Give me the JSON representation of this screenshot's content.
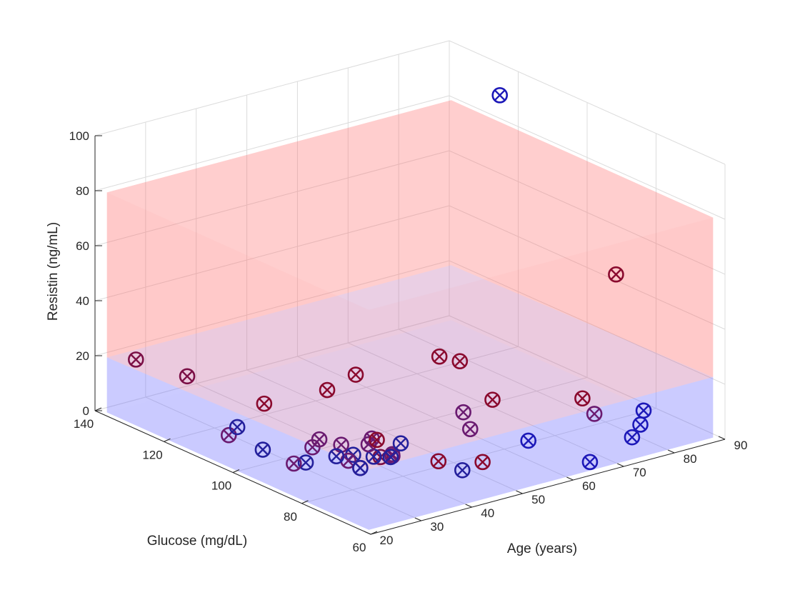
{
  "chart_data": {
    "type": "scatter",
    "title": "",
    "xlabel": "Age (years)",
    "ylabel": "Glucose (mg/dL)",
    "zlabel": "Resistin (ng/mL)",
    "xlim": [
      20,
      90
    ],
    "ylim": [
      60,
      140
    ],
    "zlim": [
      0,
      100
    ],
    "xticks": [
      "20",
      "30",
      "40",
      "50",
      "60",
      "70",
      "80",
      "90"
    ],
    "yticks": [
      "60",
      "80",
      "100",
      "120",
      "140"
    ],
    "zticks": [
      "0",
      "20",
      "40",
      "60",
      "80",
      "100"
    ],
    "grid": true,
    "decision_region": {
      "x_range": [
        21,
        89
      ],
      "y_range": [
        62,
        138
      ],
      "z_range": [
        0,
        80
      ],
      "colors": {
        "healthy": "#6f6fff",
        "patient": "#ff6b6b"
      },
      "boundary_z_front": 22,
      "boundary_z_back": 20
    },
    "marker": "circle-x",
    "points": [
      {
        "x": 24,
        "y": 134,
        "z": 20,
        "color": "#7b0f46"
      },
      {
        "x": 28,
        "y": 125,
        "z": 17,
        "color": "#7b0f46"
      },
      {
        "x": 33,
        "y": 110,
        "z": 13,
        "color": "#8a0a2e"
      },
      {
        "x": 40,
        "y": 102,
        "z": 19,
        "color": "#8a0a2e"
      },
      {
        "x": 47,
        "y": 104,
        "z": 20,
        "color": "#8a0a2e"
      },
      {
        "x": 54,
        "y": 90,
        "z": 31,
        "color": "#8a0a2e"
      },
      {
        "x": 56,
        "y": 87,
        "z": 30,
        "color": "#8a0a2e"
      },
      {
        "x": 85,
        "y": 118,
        "z": 95,
        "color": "#1c18b8"
      },
      {
        "x": 78,
        "y": 74,
        "z": 58,
        "color": "#8a0a2e"
      },
      {
        "x": 57,
        "y": 79,
        "z": 20,
        "color": "#8a0a2e"
      },
      {
        "x": 70,
        "y": 72,
        "z": 18,
        "color": "#8a0a2e"
      },
      {
        "x": 71,
        "y": 70,
        "z": 13,
        "color": "#6a1a70"
      },
      {
        "x": 33,
        "y": 96,
        "z": 5,
        "color": "#6a1a70"
      },
      {
        "x": 33,
        "y": 94,
        "z": 9,
        "color": "#6a1a70"
      },
      {
        "x": 31,
        "y": 95,
        "z": 1,
        "color": "#24209c"
      },
      {
        "x": 30,
        "y": 97,
        "z": 0,
        "color": "#6a1a70"
      },
      {
        "x": 41,
        "y": 88,
        "z": 2,
        "color": "#7b0f46"
      },
      {
        "x": 42,
        "y": 86,
        "z": 3,
        "color": "#6a1a70"
      },
      {
        "x": 44,
        "y": 89,
        "z": 1,
        "color": "#6a1a70"
      },
      {
        "x": 37,
        "y": 88,
        "z": 0,
        "color": "#6a1a70"
      },
      {
        "x": 47,
        "y": 80,
        "z": 2,
        "color": "#8a0a2e"
      },
      {
        "x": 49,
        "y": 76,
        "z": 0,
        "color": "#24209c"
      },
      {
        "x": 53,
        "y": 76,
        "z": 1,
        "color": "#8a0a2e"
      },
      {
        "x": 60,
        "y": 73,
        "z": 7,
        "color": "#1c18b8"
      },
      {
        "x": 73,
        "y": 62,
        "z": 8,
        "color": "#1c18b8"
      },
      {
        "x": 78,
        "y": 66,
        "z": 13,
        "color": "#1c18b8"
      },
      {
        "x": 76,
        "y": 64,
        "z": 10,
        "color": "#1c18b8"
      },
      {
        "x": 64,
        "y": 61,
        "z": 4,
        "color": "#1c18b8"
      },
      {
        "x": 26,
        "y": 110,
        "z": 5,
        "color": "#6a1a70"
      },
      {
        "x": 27,
        "y": 109,
        "z": 8,
        "color": "#24209c"
      },
      {
        "x": 38,
        "y": 95,
        "z": 4,
        "color": "#6a1a70"
      },
      {
        "x": 39,
        "y": 93,
        "z": 1,
        "color": "#24209c"
      },
      {
        "x": 41,
        "y": 90,
        "z": 1,
        "color": "#24209c"
      },
      {
        "x": 43,
        "y": 88,
        "z": 1,
        "color": "#24209c"
      },
      {
        "x": 36,
        "y": 90,
        "z": 2,
        "color": "#6a1a70"
      },
      {
        "x": 37,
        "y": 88,
        "z": 0,
        "color": "#24209c"
      },
      {
        "x": 35,
        "y": 92,
        "z": 3,
        "color": "#24209c"
      },
      {
        "x": 30,
        "y": 106,
        "z": 0,
        "color": "#24209c"
      },
      {
        "x": 42,
        "y": 92,
        "z": 6,
        "color": "#6a1a70"
      },
      {
        "x": 40,
        "y": 90,
        "z": 6,
        "color": "#6a1a70"
      },
      {
        "x": 43,
        "y": 92,
        "z": 5,
        "color": "#8a0a2e"
      },
      {
        "x": 45,
        "y": 88,
        "z": 5,
        "color": "#24209c"
      },
      {
        "x": 56,
        "y": 86,
        "z": 12,
        "color": "#6a1a70"
      },
      {
        "x": 56,
        "y": 84,
        "z": 7,
        "color": "#6a1a70"
      }
    ]
  }
}
